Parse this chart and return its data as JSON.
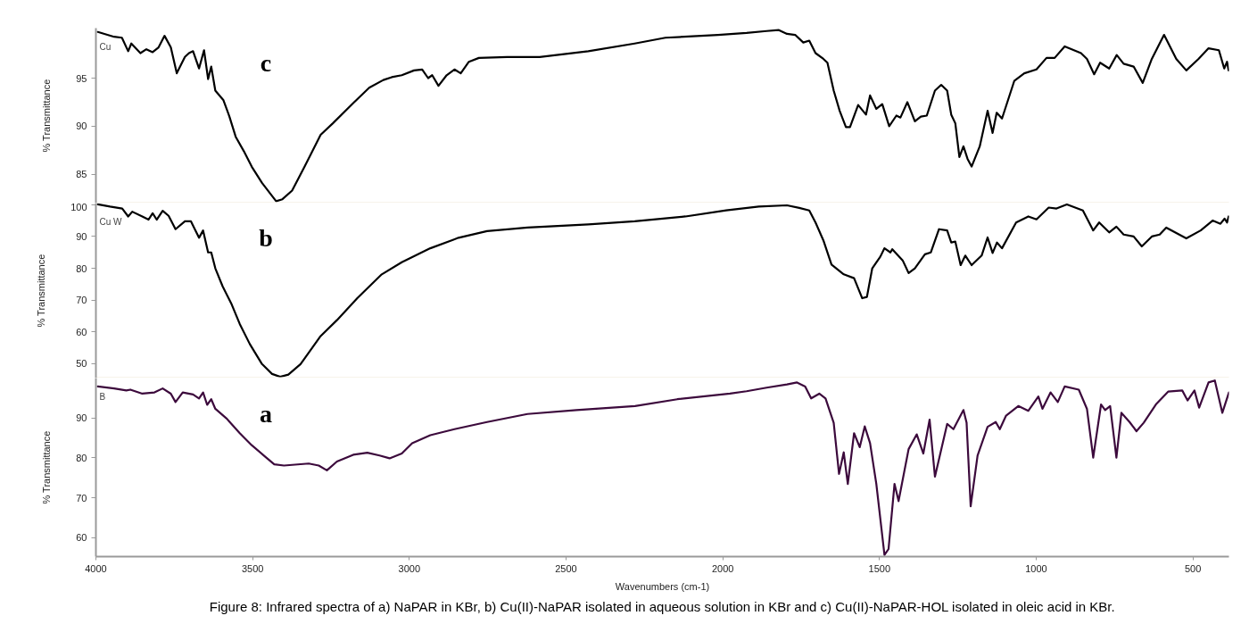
{
  "chart_data": [
    {
      "type": "line",
      "ylabel": "% Transmittance",
      "xlim": [
        4000,
        385
      ],
      "ylim": [
        82,
        100.2
      ],
      "yticks": [
        85,
        90,
        95
      ],
      "tick_labels": "y",
      "annotations": [
        "Cu"
      ],
      "x": [
        3994,
        3942,
        3917,
        3897,
        3887,
        3858,
        3839,
        3819,
        3800,
        3781,
        3761,
        3742,
        3716,
        3703,
        3690,
        3671,
        3655,
        3642,
        3632,
        3619,
        3593,
        3574,
        3554,
        3528,
        3503,
        3470,
        3425,
        3405,
        3374,
        3334,
        3283,
        3244,
        3179,
        3128,
        3083,
        3056,
        3024,
        2985,
        2959,
        2940,
        2927,
        2907,
        2881,
        2856,
        2836,
        2810,
        2778,
        2688,
        2584,
        2429,
        2281,
        2183,
        2015,
        1924,
        1860,
        1821,
        1795,
        1769,
        1743,
        1724,
        1704,
        1679,
        1666,
        1646,
        1627,
        1607,
        1594,
        1568,
        1543,
        1530,
        1510,
        1491,
        1469,
        1446,
        1433,
        1411,
        1387,
        1368,
        1349,
        1323,
        1303,
        1284,
        1271,
        1258,
        1245,
        1232,
        1219,
        1206,
        1180,
        1155,
        1139,
        1126,
        1109,
        1070,
        1038,
        999,
        967,
        941,
        909,
        857,
        838,
        815,
        796,
        767,
        743,
        721,
        689,
        660,
        631,
        592,
        553,
        521,
        482,
        450,
        417,
        400,
        391,
        386
      ],
      "series": [
        {
          "name": "c",
          "color": "#000000",
          "values": [
            99.8,
            99.3,
            99.2,
            97.8,
            98.6,
            97.6,
            98.0,
            97.7,
            98.2,
            99.4,
            98.2,
            95.5,
            97.2,
            97.6,
            97.8,
            96.0,
            97.9,
            94.9,
            96.2,
            93.7,
            92.7,
            91.0,
            88.9,
            87.4,
            85.8,
            84.1,
            82.2,
            82.4,
            83.3,
            85.8,
            89.1,
            90.3,
            92.4,
            94.0,
            94.8,
            95.1,
            95.3,
            95.8,
            95.9,
            95.0,
            95.3,
            94.2,
            95.3,
            95.9,
            95.5,
            96.7,
            97.1,
            97.2,
            97.2,
            97.8,
            98.6,
            99.2,
            99.5,
            99.7,
            99.9,
            100.0,
            99.6,
            99.5,
            98.7,
            98.9,
            97.6,
            97.0,
            96.6,
            93.7,
            91.6,
            89.9,
            89.9,
            92.2,
            91.2,
            93.2,
            91.8,
            92.3,
            90.0,
            91.1,
            90.9,
            92.5,
            90.5,
            91.0,
            91.1,
            93.7,
            94.3,
            93.7,
            91.2,
            90.3,
            86.8,
            87.9,
            86.6,
            85.8,
            87.9,
            91.6,
            89.3,
            91.4,
            90.8,
            94.7,
            95.5,
            95.9,
            97.1,
            97.1,
            98.3,
            97.6,
            97.0,
            95.4,
            96.6,
            96.0,
            97.4,
            96.5,
            96.2,
            94.5,
            97.0,
            99.5,
            97.0,
            95.8,
            97.0,
            98.1,
            97.9,
            96.0,
            96.7,
            95.8
          ]
        }
      ]
    },
    {
      "type": "line",
      "ylabel": "% Transmittance",
      "xlim": [
        4000,
        385
      ],
      "ylim": [
        45.5,
        100.5
      ],
      "yticks": [
        50,
        60,
        70,
        80,
        90,
        100
      ],
      "tick_labels": "y",
      "annotations": [
        "Cu W"
      ],
      "x": [
        3994,
        3955,
        3916,
        3897,
        3884,
        3852,
        3832,
        3819,
        3806,
        3787,
        3768,
        3746,
        3716,
        3697,
        3671,
        3658,
        3642,
        3632,
        3619,
        3596,
        3567,
        3541,
        3509,
        3470,
        3438,
        3412,
        3386,
        3347,
        3283,
        3231,
        3166,
        3088,
        3024,
        2933,
        2843,
        2752,
        2623,
        2429,
        2281,
        2119,
        1989,
        1885,
        1795,
        1756,
        1724,
        1704,
        1679,
        1653,
        1614,
        1581,
        1555,
        1540,
        1523,
        1497,
        1484,
        1465,
        1459,
        1426,
        1407,
        1387,
        1355,
        1336,
        1310,
        1284,
        1271,
        1258,
        1241,
        1226,
        1206,
        1174,
        1155,
        1139,
        1125,
        1109,
        1064,
        1025,
        999,
        960,
        935,
        902,
        851,
        818,
        799,
        767,
        744,
        721,
        689,
        663,
        631,
        606,
        585,
        521,
        475,
        437,
        412,
        399,
        391,
        386
      ],
      "series": [
        {
          "name": "b",
          "color": "#000000",
          "values": [
            100.1,
            99.4,
            98.8,
            96.3,
            97.8,
            96.3,
            95.3,
            97.3,
            95.3,
            98.1,
            96.5,
            92.3,
            94.8,
            94.8,
            89.6,
            91.9,
            85.0,
            85.0,
            80.0,
            74.4,
            68.7,
            62.5,
            56.2,
            49.9,
            46.8,
            45.9,
            46.6,
            49.9,
            58.7,
            63.7,
            70.6,
            78.1,
            81.9,
            86.3,
            89.6,
            91.7,
            92.8,
            93.8,
            94.8,
            96.3,
            98.2,
            99.4,
            99.8,
            99.0,
            98.2,
            94.4,
            88.8,
            81.2,
            78.1,
            76.9,
            70.6,
            71.0,
            80.0,
            83.7,
            86.3,
            85.0,
            86.0,
            82.5,
            78.5,
            80.0,
            84.4,
            85.0,
            92.3,
            91.9,
            88.1,
            88.4,
            81.0,
            84.0,
            81.0,
            84.0,
            89.7,
            84.8,
            88.1,
            86.3,
            94.4,
            96.3,
            95.4,
            99.1,
            98.8,
            100.1,
            98.2,
            91.9,
            94.4,
            91.3,
            93.1,
            90.6,
            90.0,
            86.9,
            90.0,
            90.6,
            92.8,
            89.4,
            91.9,
            95.0,
            94.0,
            95.6,
            94.4,
            96.3
          ]
        }
      ]
    },
    {
      "type": "line",
      "xlabel": "Wavenumbers (cm-1)",
      "ylabel": "% Transmittance",
      "xlim": [
        4000,
        385
      ],
      "xticks": [
        4000,
        3500,
        3000,
        2500,
        2000,
        1500,
        1000,
        500
      ],
      "ylim": [
        55.3,
        100
      ],
      "yticks": [
        60,
        70,
        80,
        90
      ],
      "annotations": [
        "B",
        "Figure 8: Infrared spectra of a) NaPAR in KBr, b) Cu(II)-NaPAR isolated in aqueous solution in KBr and c) Cu(II)-NaPAR-HOL isolated in oleic acid in KBr."
      ],
      "x": [
        3994,
        3942,
        3903,
        3890,
        3852,
        3813,
        3787,
        3761,
        3746,
        3723,
        3690,
        3671,
        3658,
        3645,
        3632,
        3619,
        3582,
        3541,
        3503,
        3464,
        3431,
        3400,
        3321,
        3289,
        3263,
        3231,
        3179,
        3134,
        3095,
        3063,
        3024,
        2991,
        2933,
        2856,
        2752,
        2623,
        2467,
        2280,
        2145,
        1977,
        1924,
        1860,
        1795,
        1763,
        1737,
        1718,
        1692,
        1672,
        1646,
        1629,
        1614,
        1601,
        1581,
        1563,
        1547,
        1530,
        1510,
        1484,
        1471,
        1452,
        1439,
        1407,
        1381,
        1360,
        1340,
        1323,
        1284,
        1264,
        1232,
        1222,
        1209,
        1187,
        1155,
        1129,
        1116,
        1096,
        1057,
        1025,
        993,
        980,
        954,
        931,
        909,
        864,
        838,
        818,
        793,
        780,
        764,
        744,
        728,
        702,
        680,
        657,
        618,
        579,
        534,
        517,
        495,
        480,
        450,
        430,
        406,
        385
      ],
      "series": [
        {
          "name": "a",
          "color": "#3c0a3c",
          "values": [
            97.9,
            97.4,
            96.9,
            97.1,
            96.1,
            96.4,
            97.4,
            96.1,
            94.0,
            96.4,
            95.9,
            94.9,
            96.4,
            93.3,
            94.7,
            92.3,
            89.8,
            86.2,
            83.2,
            80.6,
            78.4,
            78.1,
            78.6,
            78.1,
            76.9,
            79.1,
            80.8,
            81.3,
            80.6,
            79.9,
            81.1,
            83.7,
            85.7,
            87.2,
            89.0,
            91.0,
            92.0,
            93.0,
            94.7,
            96.1,
            96.7,
            97.6,
            98.4,
            98.9,
            97.9,
            94.9,
            96.1,
            94.9,
            88.8,
            76.0,
            81.4,
            73.5,
            86.2,
            82.7,
            87.9,
            83.7,
            73.5,
            55.7,
            57.2,
            73.5,
            69.2,
            82.2,
            85.9,
            81.1,
            89.6,
            75.3,
            88.5,
            87.2,
            92.0,
            88.8,
            67.9,
            80.6,
            87.8,
            89.0,
            87.2,
            90.6,
            93.0,
            91.8,
            95.4,
            92.3,
            96.4,
            94.0,
            97.9,
            97.1,
            92.3,
            80.1,
            93.4,
            92.0,
            93.0,
            80.1,
            91.3,
            89.0,
            86.7,
            88.8,
            93.4,
            96.6,
            96.9,
            94.4,
            96.9,
            92.6,
            98.9,
            99.4,
            91.3,
            96.4
          ]
        }
      ]
    }
  ]
}
